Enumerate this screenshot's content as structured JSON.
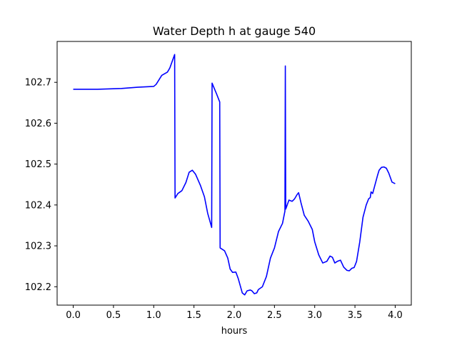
{
  "chart_data": {
    "type": "line",
    "title": "Water Depth h at gauge 540",
    "xlabel": "hours",
    "ylabel": "",
    "xlim": [
      -0.2,
      4.2
    ],
    "ylim": [
      102.155,
      102.8
    ],
    "x_ticks": [
      0.0,
      0.5,
      1.0,
      1.5,
      2.0,
      2.5,
      3.0,
      3.5,
      4.0
    ],
    "x_tick_labels": [
      "0.0",
      "0.5",
      "1.0",
      "1.5",
      "2.0",
      "2.5",
      "3.0",
      "3.5",
      "4.0"
    ],
    "y_ticks": [
      102.2,
      102.3,
      102.4,
      102.5,
      102.6,
      102.7
    ],
    "y_tick_labels": [
      "102.2",
      "102.3",
      "102.4",
      "102.5",
      "102.6",
      "102.7"
    ],
    "grid": false,
    "series": [
      {
        "color": "#0000ff",
        "points": [
          [
            0.0,
            102.683
          ],
          [
            0.3,
            102.683
          ],
          [
            0.6,
            102.685
          ],
          [
            0.8,
            102.688
          ],
          [
            1.0,
            102.69
          ],
          [
            1.03,
            102.695
          ],
          [
            1.1,
            102.717
          ],
          [
            1.17,
            102.725
          ],
          [
            1.2,
            102.735
          ],
          [
            1.26,
            102.768
          ],
          [
            1.265,
            102.417
          ],
          [
            1.3,
            102.428
          ],
          [
            1.35,
            102.435
          ],
          [
            1.4,
            102.455
          ],
          [
            1.44,
            102.48
          ],
          [
            1.48,
            102.485
          ],
          [
            1.52,
            102.475
          ],
          [
            1.58,
            102.448
          ],
          [
            1.63,
            102.42
          ],
          [
            1.67,
            102.38
          ],
          [
            1.72,
            102.345
          ],
          [
            1.725,
            102.698
          ],
          [
            1.78,
            102.672
          ],
          [
            1.82,
            102.652
          ],
          [
            1.825,
            102.295
          ],
          [
            1.88,
            102.288
          ],
          [
            1.92,
            102.27
          ],
          [
            1.95,
            102.243
          ],
          [
            1.98,
            102.235
          ],
          [
            2.02,
            102.236
          ],
          [
            2.05,
            102.22
          ],
          [
            2.1,
            102.185
          ],
          [
            2.13,
            102.18
          ],
          [
            2.16,
            102.19
          ],
          [
            2.2,
            102.192
          ],
          [
            2.22,
            102.19
          ],
          [
            2.25,
            102.183
          ],
          [
            2.28,
            102.185
          ],
          [
            2.3,
            102.193
          ],
          [
            2.35,
            102.2
          ],
          [
            2.4,
            102.225
          ],
          [
            2.45,
            102.27
          ],
          [
            2.5,
            102.295
          ],
          [
            2.55,
            102.335
          ],
          [
            2.6,
            102.355
          ],
          [
            2.63,
            102.385
          ],
          [
            2.635,
            102.74
          ],
          [
            2.64,
            102.39
          ],
          [
            2.68,
            102.412
          ],
          [
            2.72,
            102.409
          ],
          [
            2.75,
            102.415
          ],
          [
            2.78,
            102.425
          ],
          [
            2.8,
            102.43
          ],
          [
            2.83,
            102.405
          ],
          [
            2.87,
            102.375
          ],
          [
            2.92,
            102.36
          ],
          [
            2.97,
            102.34
          ],
          [
            3.0,
            102.31
          ],
          [
            3.05,
            102.278
          ],
          [
            3.1,
            102.258
          ],
          [
            3.15,
            102.262
          ],
          [
            3.19,
            102.275
          ],
          [
            3.22,
            102.272
          ],
          [
            3.25,
            102.258
          ],
          [
            3.28,
            102.262
          ],
          [
            3.32,
            102.265
          ],
          [
            3.36,
            102.248
          ],
          [
            3.4,
            102.24
          ],
          [
            3.43,
            102.239
          ],
          [
            3.46,
            102.245
          ],
          [
            3.49,
            102.247
          ],
          [
            3.52,
            102.262
          ],
          [
            3.56,
            102.31
          ],
          [
            3.6,
            102.37
          ],
          [
            3.64,
            102.4
          ],
          [
            3.67,
            102.415
          ],
          [
            3.69,
            102.418
          ],
          [
            3.7,
            102.432
          ],
          [
            3.72,
            102.428
          ],
          [
            3.75,
            102.45
          ],
          [
            3.78,
            102.472
          ],
          [
            3.8,
            102.485
          ],
          [
            3.83,
            102.492
          ],
          [
            3.86,
            102.493
          ],
          [
            3.89,
            102.49
          ],
          [
            3.92,
            102.478
          ],
          [
            3.96,
            102.456
          ],
          [
            4.0,
            102.452
          ]
        ]
      }
    ]
  }
}
